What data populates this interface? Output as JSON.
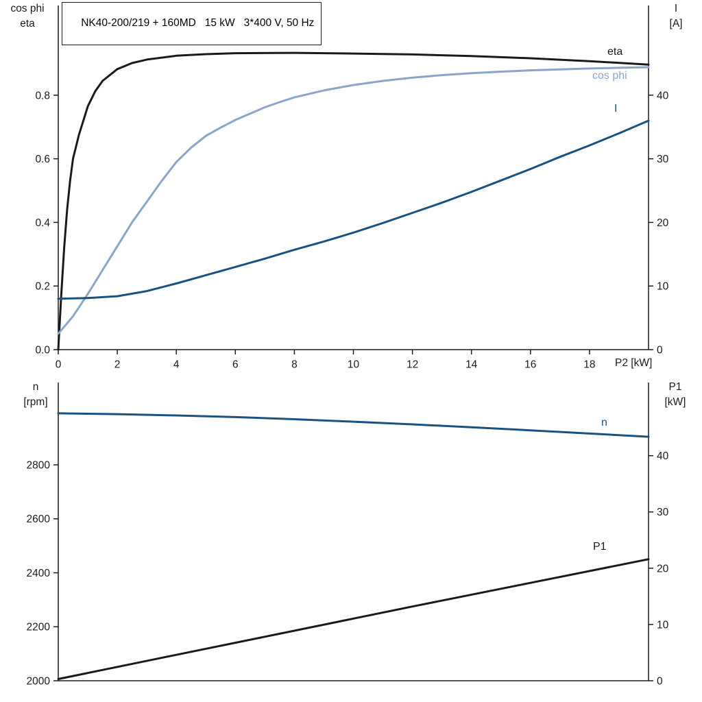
{
  "title_box": {
    "text": "NK40-200/219 + 160MD   15 kW   3*400 V, 50 Hz"
  },
  "colors": {
    "background": "#ffffff",
    "axis": "#1a1a1a",
    "black_curve": "#1a1a1a",
    "light_blue_curve": "#8aa5c8",
    "dark_blue_curve": "#1b5180"
  },
  "chart_data": [
    {
      "type": "line",
      "title": "NK40-200/219 + 160MD   15 kW   3*400 V, 50 Hz",
      "x_axis": {
        "label": "P2 [kW]",
        "min": 0,
        "max": 20,
        "ticks": [
          0,
          2,
          4,
          6,
          8,
          10,
          12,
          14,
          16,
          18
        ],
        "tick_labels": [
          "0",
          "2",
          "4",
          "6",
          "8",
          "10",
          "12",
          "14",
          "16",
          "18"
        ]
      },
      "left_axis": {
        "line1": "cos phi",
        "line2": "eta",
        "min": 0,
        "max": 1.082,
        "ticks": [
          0,
          0.2,
          0.4,
          0.6,
          0.8
        ],
        "tick_labels": [
          "0.0",
          "0.2",
          "0.4",
          "0.6",
          "0.8"
        ]
      },
      "right_axis": {
        "line1": "I",
        "line2": "[A]",
        "min": 0,
        "max": 54.1,
        "ticks": [
          0,
          10,
          20,
          30,
          40
        ],
        "tick_labels": [
          "0",
          "10",
          "20",
          "30",
          "40"
        ]
      },
      "series": [
        {
          "name": "eta",
          "axis": "left",
          "color": "#1a1a1a",
          "x": [
            0,
            0.1,
            0.2,
            0.3,
            0.4,
            0.5,
            0.7,
            1.0,
            1.25,
            1.5,
            2,
            2.5,
            3,
            4,
            5,
            6,
            8,
            10,
            12,
            14,
            16,
            18,
            20
          ],
          "y": [
            0,
            0.17,
            0.32,
            0.44,
            0.53,
            0.6,
            0.675,
            0.765,
            0.812,
            0.845,
            0.882,
            0.901,
            0.912,
            0.924,
            0.929,
            0.932,
            0.933,
            0.931,
            0.928,
            0.923,
            0.916,
            0.907,
            0.896
          ]
        },
        {
          "name": "cos phi",
          "axis": "left",
          "color": "#8aa5c8",
          "x": [
            0,
            0.5,
            1,
            1.5,
            2,
            2.5,
            3,
            3.5,
            4,
            4.5,
            5,
            5.5,
            6,
            6.5,
            7,
            7.5,
            8,
            9,
            10,
            11,
            12,
            13,
            14,
            15,
            16,
            17,
            18,
            19,
            20
          ],
          "y": [
            0.05,
            0.105,
            0.175,
            0.25,
            0.325,
            0.4,
            0.465,
            0.53,
            0.59,
            0.635,
            0.672,
            0.698,
            0.722,
            0.742,
            0.762,
            0.778,
            0.793,
            0.815,
            0.832,
            0.845,
            0.855,
            0.863,
            0.869,
            0.874,
            0.878,
            0.881,
            0.884,
            0.886,
            0.888
          ]
        },
        {
          "name": "I",
          "axis": "right",
          "color": "#1b5180",
          "x": [
            0,
            1,
            2,
            3,
            4,
            5,
            6,
            7,
            8,
            9,
            10,
            11,
            12,
            13,
            14,
            15,
            16,
            17,
            18,
            19,
            20
          ],
          "y": [
            8.0,
            8.1,
            8.4,
            9.2,
            10.4,
            11.7,
            13.0,
            14.3,
            15.7,
            17.0,
            18.4,
            19.9,
            21.5,
            23.1,
            24.8,
            26.6,
            28.4,
            30.3,
            32.1,
            34.0,
            36.0
          ]
        }
      ]
    },
    {
      "type": "line",
      "title": "",
      "x_axis": {
        "label": "",
        "min": 0,
        "max": 20,
        "ticks": [],
        "tick_labels": []
      },
      "left_axis": {
        "line1": "n",
        "line2": "[rpm]",
        "min": 2000,
        "max": 3105,
        "ticks": [
          2000,
          2200,
          2400,
          2600,
          2800
        ],
        "tick_labels": [
          "2000",
          "2200",
          "2400",
          "2600",
          "2800"
        ]
      },
      "right_axis": {
        "line1": "P1",
        "line2": "[kW]",
        "min": 0,
        "max": 53,
        "ticks": [
          0,
          10,
          20,
          30,
          40
        ],
        "tick_labels": [
          "0",
          "10",
          "20",
          "30",
          "40"
        ]
      },
      "series": [
        {
          "name": "n",
          "axis": "left",
          "color": "#1b5180",
          "x": [
            0,
            2,
            4,
            6,
            8,
            10,
            12,
            14,
            16,
            18,
            20
          ],
          "y": [
            2991,
            2988,
            2983,
            2977,
            2969,
            2960,
            2950,
            2939,
            2928,
            2916,
            2904
          ]
        },
        {
          "name": "P1",
          "axis": "right",
          "color": "#1a1a1a",
          "x": [
            0,
            4,
            8,
            12,
            16,
            20
          ],
          "y": [
            0.3,
            4.6,
            8.9,
            13.2,
            17.4,
            21.6
          ]
        }
      ]
    }
  ]
}
